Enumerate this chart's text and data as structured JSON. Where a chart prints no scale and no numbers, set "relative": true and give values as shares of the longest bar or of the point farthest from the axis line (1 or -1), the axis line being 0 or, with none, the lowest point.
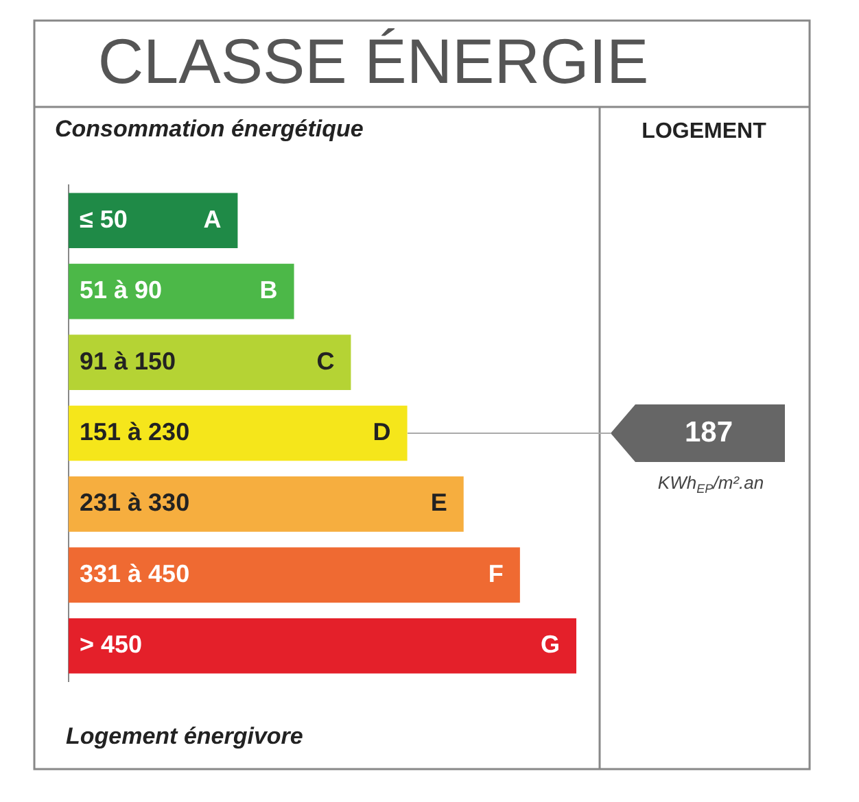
{
  "chart_data": {
    "type": "bar",
    "orientation": "horizontal",
    "relative": true,
    "tick_labels": false,
    "title": "CLASSE ÉNERGIE",
    "subtitle": "Consommation énergétique",
    "categories": [
      "≤ 50",
      "51 à 90",
      "91 à 150",
      "151 à 230",
      "231 à 330",
      "331 à 450",
      "> 450"
    ],
    "values": [
      0.333,
      0.444,
      0.556,
      0.667,
      0.778,
      0.889,
      1
    ],
    "colors": [
      "#1f8a47",
      "#4cb848",
      "#b5d334",
      "#f5e61b",
      "#f6ae3f",
      "#ef6a32",
      "#e4202a"
    ],
    "annotations": [
      "LOGEMENT",
      "187",
      "KWh$_{EP}$/m².an",
      "Logement énergivore",
      "A",
      "B",
      "C",
      "D",
      "E",
      "F",
      "G"
    ]
  }
}
